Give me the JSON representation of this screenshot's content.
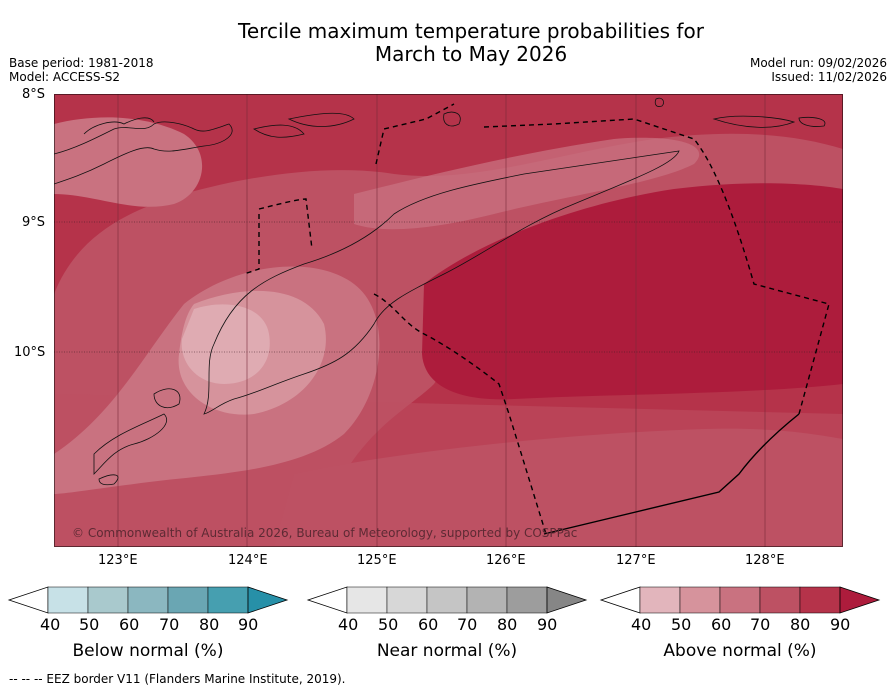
{
  "title_line1": "Tercile maximum temperature probabilities for",
  "title_line2": "March to May 2026",
  "meta_left": {
    "base_period": "Base period: 1981-2018",
    "model": "Model: ACCESS-S2"
  },
  "meta_right": {
    "model_run": "Model run: 09/02/2026",
    "issued": "Issued: 11/02/2026"
  },
  "lat_labels": [
    "8°S",
    "9°S",
    "10°S"
  ],
  "lon_labels": [
    "123°E",
    "124°E",
    "125°E",
    "126°E",
    "127°E",
    "128°E"
  ],
  "copyright": "© Commonwealth of Australia 2026, Bureau of Meteorology, supported by COSPPac",
  "legends": [
    {
      "label": "Below normal (%)",
      "ticks": [
        "40",
        "50",
        "60",
        "70",
        "80",
        "90"
      ],
      "colors": [
        "#ffffff",
        "#c7e1e7",
        "#a9c9cd",
        "#8bb7c0",
        "#6aa6b3",
        "#469fb0",
        "#2790a8"
      ]
    },
    {
      "label": "Near normal (%)",
      "ticks": [
        "40",
        "50",
        "60",
        "70",
        "80",
        "90"
      ],
      "colors": [
        "#ffffff",
        "#e6e6e6",
        "#d7d7d7",
        "#c5c5c5",
        "#b3b3b3",
        "#9d9d9d",
        "#868686"
      ]
    },
    {
      "label": "Above normal (%)",
      "ticks": [
        "40",
        "50",
        "60",
        "70",
        "80",
        "90"
      ],
      "colors": [
        "#ffffff",
        "#e2b5bc",
        "#d6939c",
        "#c97280",
        "#bd5163",
        "#b5334a",
        "#ad1c3c"
      ]
    }
  ],
  "footer": "--  --  -- EEZ border V11 (Flanders Marine Institute, 2019)."
}
